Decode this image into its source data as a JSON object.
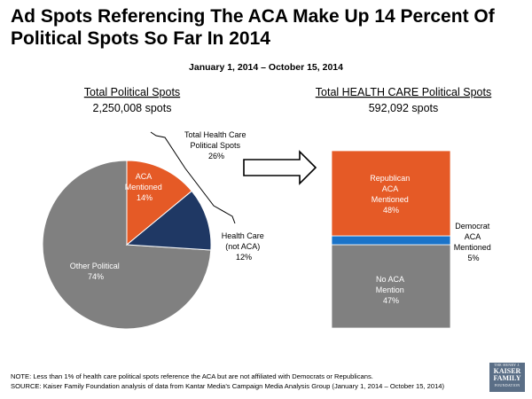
{
  "title": "Ad Spots Referencing The ACA Make Up 14 Percent Of Political Spots So Far In 2014",
  "date_range": "January 1, 2014 – October 15, 2014",
  "colors": {
    "aca": "#e55a26",
    "health_care": "#1f3864",
    "other": "#808080",
    "democrat": "#1a73c8",
    "no_aca": "#808080",
    "republican": "#e55a26"
  },
  "chart_data": [
    {
      "type": "pie",
      "title": "Total Political Spots",
      "subtitle": "2,250,008 spots",
      "slices": [
        {
          "name": "ACA Mentioned",
          "label": [
            "ACA",
            "Mentioned",
            "14%"
          ],
          "value": 14
        },
        {
          "name": "Health Care (not ACA)",
          "label": [
            "Health Care",
            "(not ACA)",
            "12%"
          ],
          "value": 12
        },
        {
          "name": "Other Political",
          "label": [
            "Other Political",
            "74%"
          ],
          "value": 74
        }
      ],
      "annotation": [
        "Total Health Care",
        "Political Spots",
        "26%"
      ]
    },
    {
      "type": "bar",
      "stacked": true,
      "title": "Total HEALTH CARE Political Spots",
      "subtitle": "592,092 spots",
      "segments": [
        {
          "name": "No ACA Mention",
          "label": [
            "No ACA",
            "Mention",
            "47%"
          ],
          "value": 47
        },
        {
          "name": "Democrat ACA Mentioned",
          "label": [
            "Democrat",
            "ACA",
            "Mentioned",
            "5%"
          ],
          "value": 5
        },
        {
          "name": "Republican ACA Mentioned",
          "label": [
            "Republican",
            "ACA",
            "Mentioned",
            "48%"
          ],
          "value": 48
        }
      ]
    }
  ],
  "notes": {
    "note": "NOTE: Less than 1% of health care political spots reference the ACA but are not affiliated with Democrats or Republicans.",
    "source": "SOURCE: Kaiser Family Foundation analysis of data from Kantar Media’s Campaign Media Analysis Group (January 1, 2014 – October 15, 2014)"
  },
  "logo": {
    "line1": "THE HENRY J.",
    "line2": "KAISER",
    "line3": "FAMILY",
    "line4": "FOUNDATION"
  }
}
